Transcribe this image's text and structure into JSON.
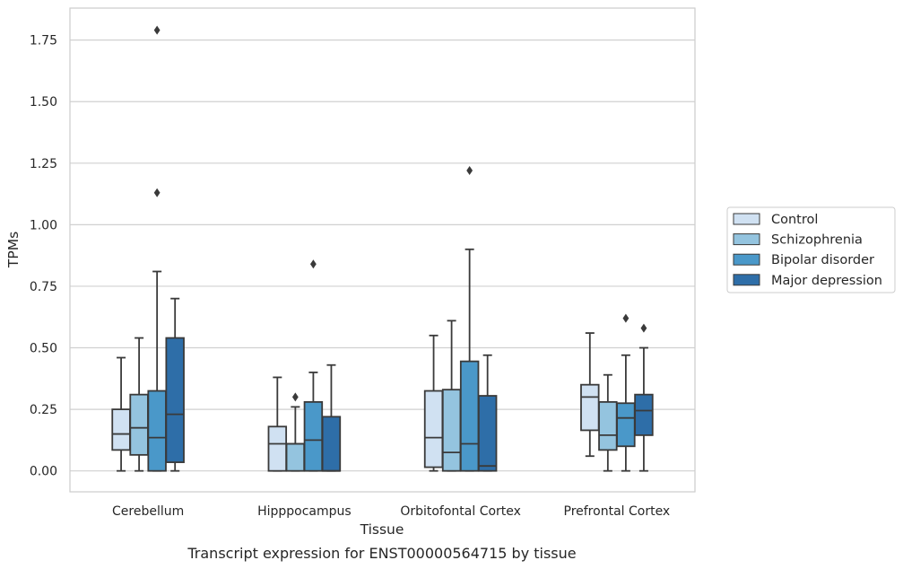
{
  "chart_data": {
    "type": "boxplot",
    "xlabel": "Tissue",
    "ylabel": "TPMs",
    "caption": "Transcript expression for ENST00000564715 by tissue",
    "ylim": [
      -0.085,
      1.88
    ],
    "y_ticks": [
      "0.00",
      "0.25",
      "0.50",
      "0.75",
      "1.00",
      "1.25",
      "1.50",
      "1.75"
    ],
    "y_tick_values": [
      0,
      0.25,
      0.5,
      0.75,
      1.0,
      1.25,
      1.5,
      1.75
    ],
    "grid": "horizontal",
    "legend_position": "right",
    "categories": [
      "Cerebellum",
      "Hipppocampus",
      "Orbitofontal Cortex",
      "Prefrontal Cortex"
    ],
    "series": [
      {
        "name": "Control",
        "color": "#d0e1f2",
        "boxes": [
          {
            "whislo": 0.0,
            "q1": 0.085,
            "med": 0.15,
            "q3": 0.25,
            "whishi": 0.46,
            "fliers": []
          },
          {
            "whislo": 0.0,
            "q1": 0.0,
            "med": 0.11,
            "q3": 0.18,
            "whishi": 0.38,
            "fliers": []
          },
          {
            "whislo": 0.0,
            "q1": 0.015,
            "med": 0.135,
            "q3": 0.325,
            "whishi": 0.55,
            "fliers": []
          },
          {
            "whislo": 0.06,
            "q1": 0.165,
            "med": 0.3,
            "q3": 0.35,
            "whishi": 0.56,
            "fliers": []
          }
        ]
      },
      {
        "name": "Schizophrenia",
        "color": "#94c4df",
        "boxes": [
          {
            "whislo": 0.0,
            "q1": 0.065,
            "med": 0.175,
            "q3": 0.31,
            "whishi": 0.54,
            "fliers": []
          },
          {
            "whislo": 0.0,
            "q1": 0.0,
            "med": 0.11,
            "q3": 0.11,
            "whishi": 0.26,
            "fliers": [
              0.3
            ]
          },
          {
            "whislo": 0.0,
            "q1": 0.0,
            "med": 0.075,
            "q3": 0.33,
            "whishi": 0.61,
            "fliers": []
          },
          {
            "whislo": 0.0,
            "q1": 0.085,
            "med": 0.145,
            "q3": 0.28,
            "whishi": 0.39,
            "fliers": []
          }
        ]
      },
      {
        "name": "Bipolar disorder",
        "color": "#4a98c9",
        "boxes": [
          {
            "whislo": 0.0,
            "q1": 0.0,
            "med": 0.135,
            "q3": 0.325,
            "whishi": 0.81,
            "fliers": [
              1.13,
              1.79
            ]
          },
          {
            "whislo": 0.0,
            "q1": 0.0,
            "med": 0.125,
            "q3": 0.28,
            "whishi": 0.4,
            "fliers": [
              0.84
            ]
          },
          {
            "whislo": 0.0,
            "q1": 0.0,
            "med": 0.11,
            "q3": 0.445,
            "whishi": 0.9,
            "fliers": [
              1.22
            ]
          },
          {
            "whislo": 0.0,
            "q1": 0.1,
            "med": 0.215,
            "q3": 0.275,
            "whishi": 0.47,
            "fliers": [
              0.62
            ]
          }
        ]
      },
      {
        "name": "Major depression",
        "color": "#2e6ea8",
        "boxes": [
          {
            "whislo": 0.0,
            "q1": 0.035,
            "med": 0.23,
            "q3": 0.54,
            "whishi": 0.7,
            "fliers": []
          },
          {
            "whislo": 0.0,
            "q1": 0.0,
            "med": 0.0,
            "q3": 0.22,
            "whishi": 0.43,
            "fliers": []
          },
          {
            "whislo": 0.0,
            "q1": 0.0,
            "med": 0.02,
            "q3": 0.305,
            "whishi": 0.47,
            "fliers": []
          },
          {
            "whislo": 0.0,
            "q1": 0.145,
            "med": 0.245,
            "q3": 0.31,
            "whishi": 0.5,
            "fliers": [
              0.58
            ]
          }
        ]
      }
    ]
  }
}
